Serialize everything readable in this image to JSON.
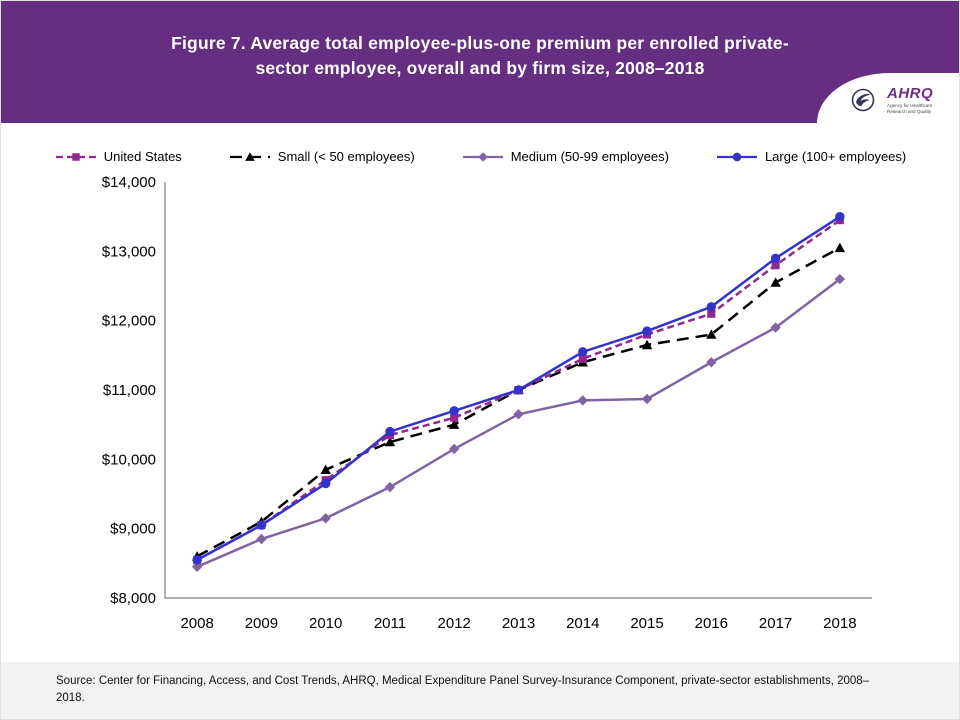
{
  "slide": {
    "title": "Figure 7. Average total employee-plus-one premium per enrolled private-sector employee, overall and by firm size, 2008–2018",
    "source": "Source: Center for Financing, Access, and Cost Trends, AHRQ, Medical Expenditure Panel Survey-Insurance Component, private-sector establishments, 2008–2018.",
    "colors": {
      "header_bg": "#662e80",
      "footer_bg": "#f2f2f2",
      "axis": "#7f7f7f"
    }
  },
  "logo": {
    "org_abbr": "AHRQ",
    "tagline": "Agency for Healthcare Research and Quality"
  },
  "chart_data": {
    "type": "line",
    "title": "Figure 7. Average total employee-plus-one premium per enrolled private-sector employee, overall and by firm size, 2008–2018",
    "x": [
      "2008",
      "2009",
      "2010",
      "2011",
      "2012",
      "2013",
      "2014",
      "2015",
      "2016",
      "2017",
      "2018"
    ],
    "xlabel": "",
    "ylabel": "",
    "ylim": [
      8000,
      14000
    ],
    "ytick_step": 1000,
    "ytick_labels": [
      "$8,000",
      "$9,000",
      "$10,000",
      "$11,000",
      "$12,000",
      "$13,000",
      "$14,000"
    ],
    "grid": false,
    "legend_position": "top",
    "draw_order": [
      2,
      1,
      0,
      3
    ],
    "series": [
      {
        "name": "United States",
        "color": "#93278f",
        "marker": "square",
        "dash": "7 4",
        "values": [
          8550,
          9050,
          9700,
          10350,
          10600,
          11000,
          11450,
          11800,
          12100,
          12800,
          13450
        ]
      },
      {
        "name": "Small (< 50 employees)",
        "color": "#000000",
        "marker": "triangle",
        "dash": "12 7",
        "values": [
          8600,
          9100,
          9850,
          10250,
          10500,
          11000,
          11400,
          11650,
          11800,
          12550,
          13050
        ]
      },
      {
        "name": "Medium (50-99 employees)",
        "color": "#8064a2",
        "marker": "diamond",
        "dash": null,
        "values": [
          8450,
          8850,
          9150,
          9600,
          10150,
          10650,
          10850,
          10870,
          11400,
          11900,
          12600
        ]
      },
      {
        "name": "Large (100+ employees)",
        "color": "#3333cc",
        "marker": "circle",
        "dash": null,
        "values": [
          8550,
          9050,
          9650,
          10400,
          10700,
          11000,
          11550,
          11850,
          12200,
          12900,
          13500
        ]
      }
    ]
  }
}
